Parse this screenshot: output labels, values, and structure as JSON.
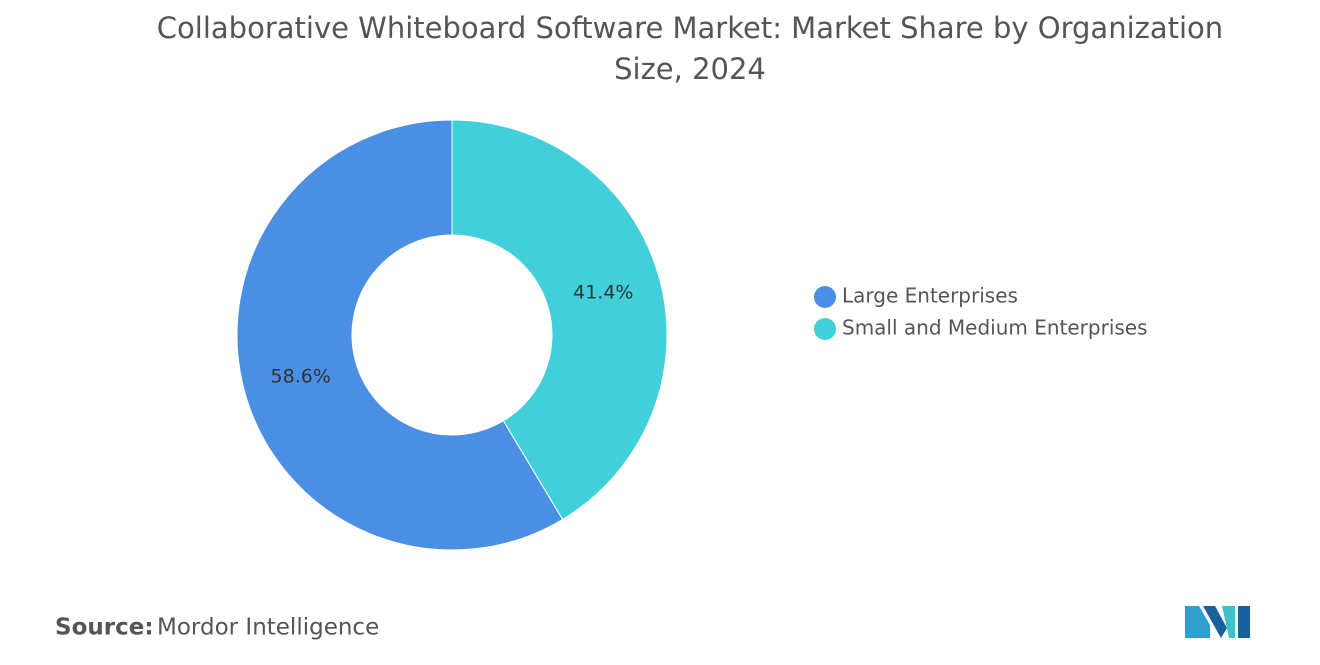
{
  "chart_data": {
    "type": "donut",
    "title": "Collaborative Whiteboard Software Market: Market Share by Organization Size, 2024",
    "categories": [
      "Large Enterprises",
      "Small and Medium Enterprises"
    ],
    "values": [
      58.6,
      41.4
    ],
    "value_labels": [
      "58.6%",
      "41.4%"
    ],
    "colors": [
      "#4a8fe3",
      "#41cfda"
    ],
    "legend": "right",
    "source_label": "Source:",
    "source": "Mordor Intelligence"
  }
}
